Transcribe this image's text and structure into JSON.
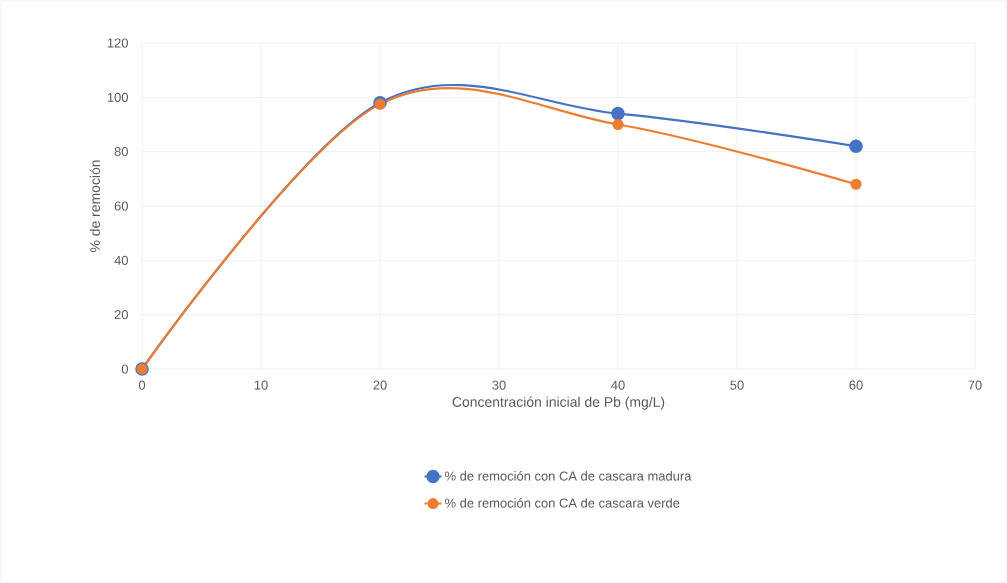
{
  "chart_data": {
    "type": "line",
    "xlabel": "Concentración inicial de Pb (mg/L)",
    "ylabel": "% de remoción",
    "x": [
      0,
      20,
      40,
      60
    ],
    "series": [
      {
        "name": "% de remoción con CA de cascara madura",
        "color": "#4472c4",
        "values": [
          0,
          98,
          94,
          82
        ]
      },
      {
        "name": "% de remoción con CA de cascara verde",
        "color": "#ed7d31",
        "values": [
          0,
          97.5,
          90,
          68
        ]
      }
    ],
    "xlim": [
      0,
      70
    ],
    "ylim": [
      0,
      120
    ],
    "xticks": [
      0,
      10,
      20,
      30,
      40,
      50,
      60,
      70
    ],
    "yticks": [
      0,
      20,
      40,
      60,
      80,
      100,
      120
    ],
    "grid": true,
    "legend": "bottom",
    "marker": "circle",
    "line_style": "solid"
  }
}
